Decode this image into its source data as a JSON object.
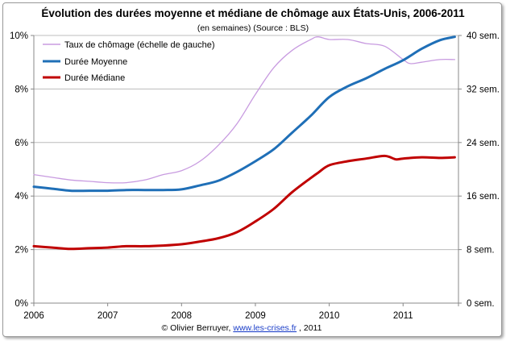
{
  "chart_data": {
    "type": "line",
    "title": "Évolution des durées moyenne et médiane de chômage aux États-Unis, 2006-2011",
    "subtitle": "(en semaines) (Source : BLS)",
    "x_ticks": [
      "2006",
      "2007",
      "2008",
      "2009",
      "2010",
      "2011"
    ],
    "xlim": [
      2006,
      2011.75
    ],
    "y_left": {
      "ticks": [
        "0%",
        "2%",
        "4%",
        "6%",
        "8%",
        "10%"
      ],
      "lim": [
        0,
        10
      ]
    },
    "y_right": {
      "ticks": [
        "0 sem.",
        "8 sem.",
        "16 sem.",
        "24 sem.",
        "32 sem.",
        "40 sem."
      ],
      "lim": [
        0,
        40
      ]
    },
    "grid": "horizontal",
    "legend_position": "top-left",
    "series": [
      {
        "name": "Taux de chômage (échelle de gauche)",
        "axis": "left",
        "color": "#c89be0",
        "x": [
          2006.0,
          2006.25,
          2006.5,
          2006.75,
          2007.0,
          2007.25,
          2007.5,
          2007.75,
          2008.0,
          2008.25,
          2008.5,
          2008.75,
          2009.0,
          2009.25,
          2009.5,
          2009.75,
          2009.85,
          2010.0,
          2010.25,
          2010.5,
          2010.75,
          2011.0,
          2011.1,
          2011.25,
          2011.5,
          2011.7
        ],
        "y": [
          4.8,
          4.7,
          4.6,
          4.55,
          4.5,
          4.5,
          4.6,
          4.8,
          4.95,
          5.3,
          5.9,
          6.7,
          7.8,
          8.8,
          9.45,
          9.85,
          9.95,
          9.85,
          9.85,
          9.7,
          9.6,
          9.1,
          8.95,
          9.0,
          9.1,
          9.1
        ]
      },
      {
        "name": "Durée Moyenne",
        "axis": "right",
        "color": "#1f6fb7",
        "x": [
          2006.0,
          2006.25,
          2006.5,
          2006.75,
          2007.0,
          2007.25,
          2007.5,
          2007.75,
          2008.0,
          2008.25,
          2008.5,
          2008.75,
          2009.0,
          2009.25,
          2009.5,
          2009.75,
          2010.0,
          2010.25,
          2010.5,
          2010.75,
          2011.0,
          2011.25,
          2011.5,
          2011.7
        ],
        "y": [
          17.4,
          17.1,
          16.8,
          16.8,
          16.8,
          16.9,
          16.9,
          16.9,
          17.0,
          17.6,
          18.3,
          19.6,
          21.2,
          23.0,
          25.5,
          28.0,
          30.8,
          32.4,
          33.6,
          35.0,
          36.3,
          38.0,
          39.3,
          39.8
        ]
      },
      {
        "name": "Durée Médiane",
        "axis": "right",
        "color": "#c00000",
        "x": [
          2006.0,
          2006.25,
          2006.5,
          2006.75,
          2007.0,
          2007.25,
          2007.5,
          2007.75,
          2008.0,
          2008.25,
          2008.5,
          2008.75,
          2009.0,
          2009.25,
          2009.5,
          2009.75,
          2009.85,
          2010.0,
          2010.25,
          2010.5,
          2010.75,
          2010.9,
          2011.0,
          2011.25,
          2011.5,
          2011.7
        ],
        "y": [
          8.5,
          8.3,
          8.1,
          8.2,
          8.3,
          8.5,
          8.5,
          8.6,
          8.8,
          9.2,
          9.7,
          10.6,
          12.2,
          14.1,
          16.6,
          18.7,
          19.5,
          20.6,
          21.2,
          21.6,
          22.0,
          21.5,
          21.6,
          21.8,
          21.7,
          21.8
        ]
      }
    ]
  },
  "credit": {
    "prefix": "© Olivier Berruyer, ",
    "link": "www.les-crises.fr",
    "suffix": ",  2011"
  }
}
